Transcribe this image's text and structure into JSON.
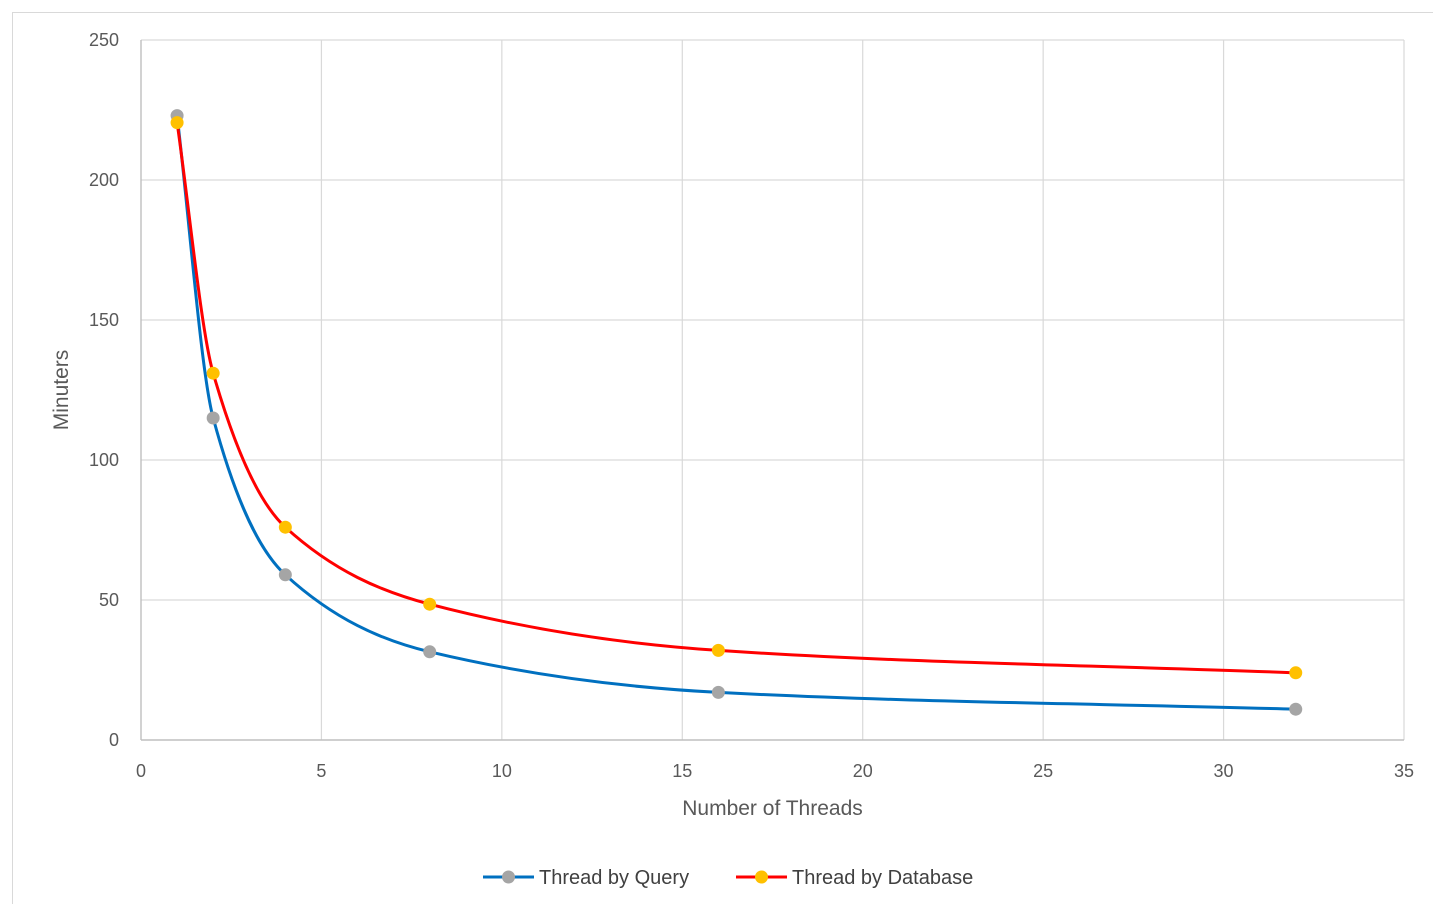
{
  "chart_data": {
    "type": "line",
    "title": "",
    "xlabel": "Number of Threads",
    "ylabel": "Minuters",
    "xlim": [
      0,
      35
    ],
    "ylim": [
      0,
      250
    ],
    "x_ticks": [
      0,
      5,
      10,
      15,
      20,
      25,
      30,
      35
    ],
    "y_ticks": [
      0,
      50,
      100,
      150,
      200,
      250
    ],
    "grid": true,
    "legend_position": "bottom",
    "smooth": true,
    "series": [
      {
        "name": "Thread by Query",
        "line_color": "#0070c0",
        "marker_color": "#a5a5a5",
        "x": [
          1,
          2,
          4,
          8,
          16,
          32
        ],
        "y": [
          223,
          115,
          59,
          31.5,
          17,
          11
        ]
      },
      {
        "name": "Thread by Database",
        "line_color": "#ff0000",
        "marker_color": "#ffc000",
        "x": [
          1,
          2,
          4,
          8,
          16,
          32
        ],
        "y": [
          220.5,
          131,
          76,
          48.5,
          32,
          24
        ]
      }
    ]
  }
}
